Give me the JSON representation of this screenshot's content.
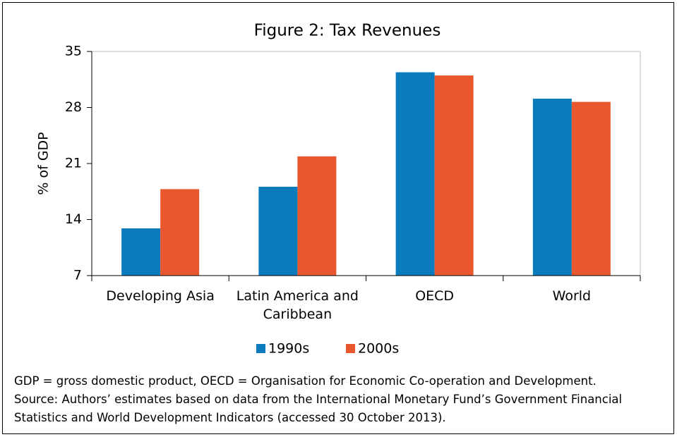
{
  "chart_data": {
    "type": "bar",
    "title": "Figure 2: Tax Revenues",
    "y_label": "% of GDP",
    "categories": [
      "Developing Asia",
      "Latin America and Caribbean",
      "OECD",
      "World"
    ],
    "series": [
      {
        "name": "1990s",
        "color": "#0a7bbd",
        "values": [
          12.9,
          18.1,
          32.4,
          29.1
        ]
      },
      {
        "name": "2000s",
        "color": "#e8572e",
        "values": [
          17.8,
          21.9,
          32.0,
          28.7
        ]
      }
    ],
    "ylim": [
      7,
      35
    ],
    "yticks": [
      7,
      14,
      21,
      28,
      35
    ],
    "grid": false,
    "legend": "bottom",
    "notes": [
      "GDP = gross domestic product, OECD = Organisation for Economic Co-operation and Development.",
      "Source: Authors’ estimates based on data from the International Monetary Fund’s Government Financial",
      "Statistics and World Development Indicators (accessed 30 October 2013)."
    ]
  }
}
